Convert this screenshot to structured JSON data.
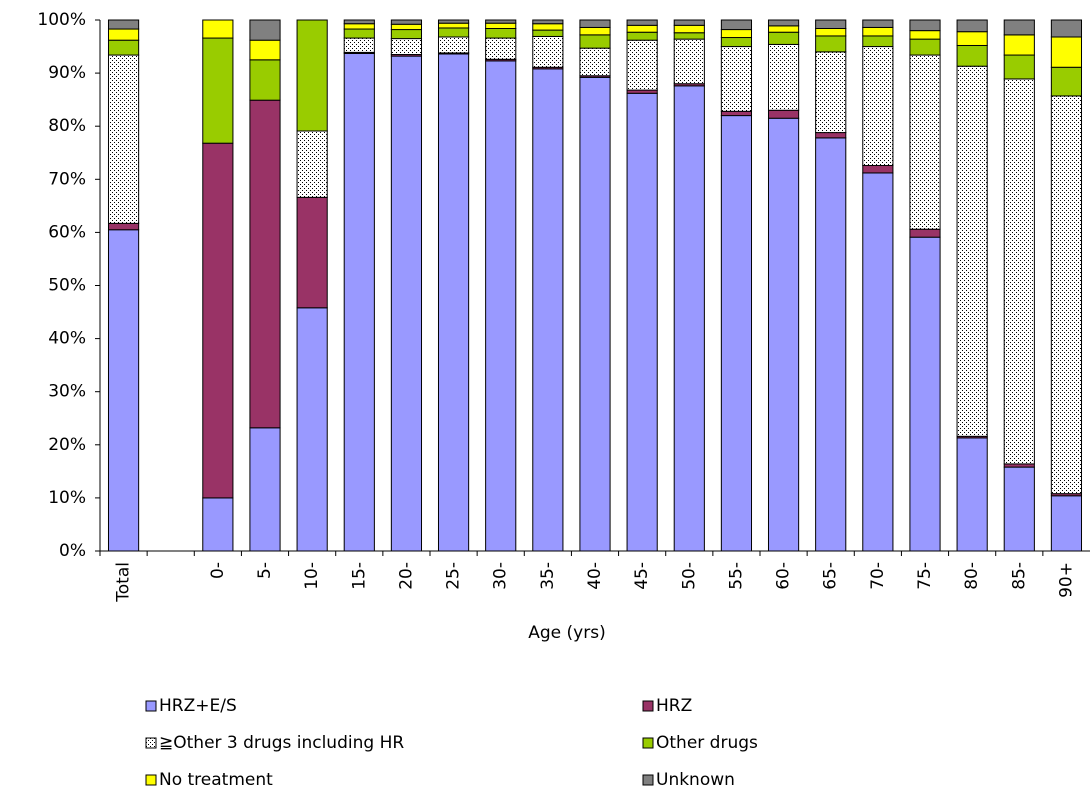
{
  "chart_data": {
    "type": "stacked_bar_100",
    "x_label": "Age (yrs)",
    "categories": [
      "Total",
      null,
      "0-",
      "5-",
      "10-",
      "15-",
      "20-",
      "25-",
      "30-",
      "35-",
      "40-",
      "45-",
      "50-",
      "55-",
      "60-",
      "65-",
      "70-",
      "75-",
      "80-",
      "85-",
      "90+"
    ],
    "ylim": [
      0,
      100
    ],
    "yticks": [
      {
        "value": 0,
        "label": "0%"
      },
      {
        "value": 10,
        "label": "10%"
      },
      {
        "value": 20,
        "label": "20%"
      },
      {
        "value": 30,
        "label": "30%"
      },
      {
        "value": 40,
        "label": "40%"
      },
      {
        "value": 50,
        "label": "50%"
      },
      {
        "value": 60,
        "label": "60%"
      },
      {
        "value": 70,
        "label": "70%"
      },
      {
        "value": 80,
        "label": "80%"
      },
      {
        "value": 90,
        "label": "90%"
      },
      {
        "value": 100,
        "label": "100%"
      }
    ],
    "grid": false,
    "series": [
      {
        "name": "HRZ+E/S",
        "color": "#9999ff",
        "values": [
          60.5,
          null,
          10.0,
          23.2,
          45.8,
          93.7,
          93.2,
          93.6,
          92.3,
          90.8,
          89.2,
          86.2,
          87.6,
          82.0,
          81.5,
          77.8,
          71.2,
          59.1,
          21.3,
          15.8,
          10.4
        ]
      },
      {
        "name": "HRZ",
        "color": "#993366",
        "values": [
          1.2,
          null,
          66.8,
          61.7,
          20.8,
          0.2,
          0.3,
          0.2,
          0.3,
          0.3,
          0.3,
          0.6,
          0.4,
          0.8,
          1.5,
          1.0,
          1.4,
          1.5,
          0.3,
          0.6,
          0.4
        ]
      },
      {
        "name": "≧Other 3 drugs including HR",
        "color": "#ffffff",
        "pattern": "dots",
        "values": [
          31.7,
          null,
          0,
          0,
          12.5,
          2.7,
          3.0,
          3.0,
          4.0,
          5.8,
          5.2,
          9.4,
          8.4,
          12.2,
          12.4,
          15.2,
          22.4,
          32.8,
          69.7,
          72.5,
          74.9
        ]
      },
      {
        "name": "Other drugs",
        "color": "#99cc00",
        "values": [
          2.8,
          null,
          19.8,
          7.6,
          20.9,
          1.7,
          1.7,
          1.7,
          1.8,
          1.2,
          2.5,
          1.5,
          1.2,
          1.7,
          2.3,
          3.0,
          2.0,
          3.0,
          3.9,
          4.5,
          5.4
        ]
      },
      {
        "name": "No treatment",
        "color": "#ffff00",
        "values": [
          2.1,
          null,
          3.4,
          3.7,
          0,
          1.0,
          1.0,
          0.9,
          1.0,
          1.2,
          1.4,
          1.3,
          1.4,
          1.5,
          1.2,
          1.4,
          1.6,
          1.6,
          2.6,
          3.8,
          5.7
        ]
      },
      {
        "name": "Unknown",
        "color": "#808080",
        "values": [
          1.7,
          null,
          0,
          3.8,
          0,
          0.7,
          0.8,
          0.6,
          0.6,
          0.7,
          1.4,
          1.0,
          1.0,
          1.8,
          1.1,
          1.6,
          1.4,
          2.0,
          2.2,
          2.8,
          3.2
        ]
      }
    ]
  }
}
